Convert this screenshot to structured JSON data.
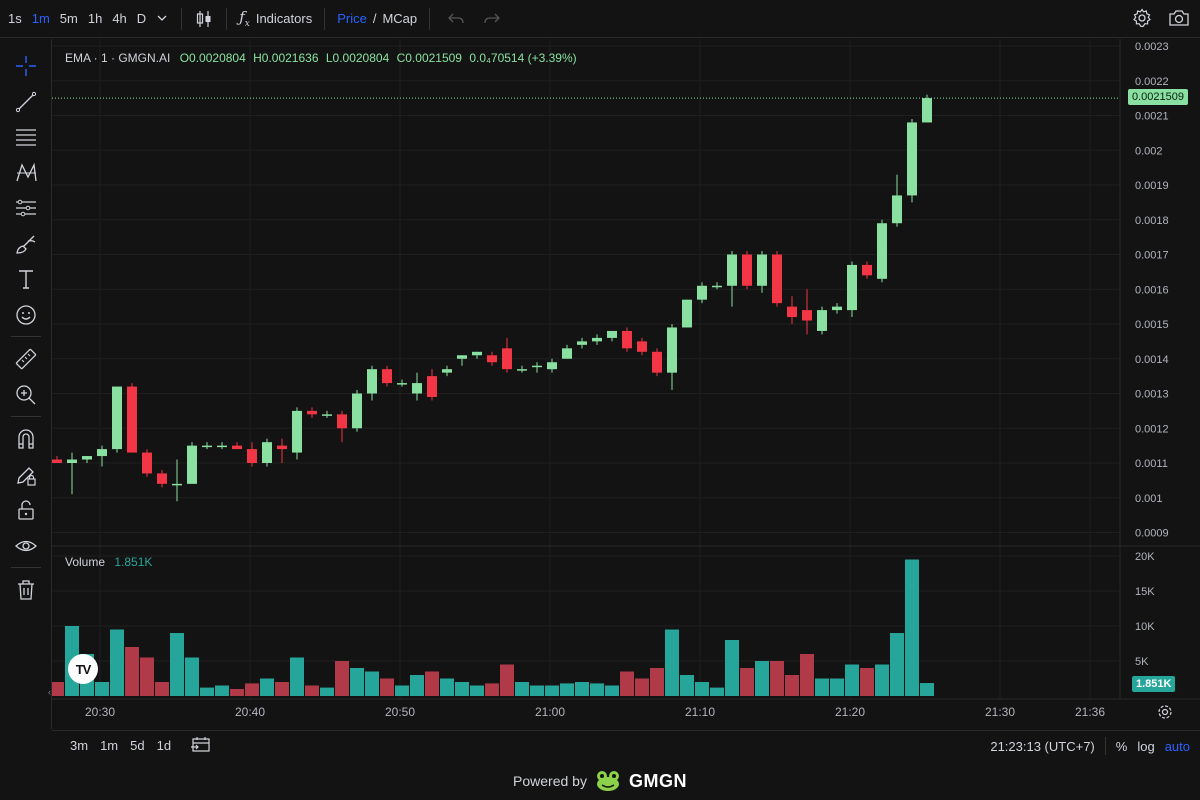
{
  "toolbar": {
    "timeframes": [
      "1s",
      "1m",
      "5m",
      "1h",
      "4h",
      "D"
    ],
    "active_timeframe": "1m",
    "indicators_label": "Indicators",
    "price_label": "Price",
    "slash": "/",
    "mcap_label": "MCap"
  },
  "legend": {
    "name": "EMA · 1 · GMGN.AI",
    "o": "O0.0020804",
    "h": "H0.0021636",
    "l": "L0.0020804",
    "c": "C0.0021509",
    "change": "0.0₄70514 (+3.39%)"
  },
  "volume_legend": {
    "label": "Volume",
    "value": "1.851K"
  },
  "price_tag": "0.0021509",
  "volume_tag": "1.851K",
  "bottom": {
    "ranges": [
      "3m",
      "1m",
      "5d",
      "1d"
    ],
    "time": "21:23:13 (UTC+7)",
    "percent": "%",
    "log": "log",
    "auto": "auto"
  },
  "footer": {
    "powered": "Powered by",
    "brand": "GMGN"
  },
  "colors": {
    "up": "#89e0a0",
    "down": "#f23645",
    "vol_up": "#26a69a",
    "vol_down": "#b03a48",
    "accent": "#2962ff"
  },
  "chart_data": {
    "type": "candlestick",
    "price_axis_labels": [
      "0.0023",
      "0.0022",
      "0.0021",
      "0.002",
      "0.0019",
      "0.0018",
      "0.0017",
      "0.0016",
      "0.0015",
      "0.0014",
      "0.0013",
      "0.0012",
      "0.0011",
      "0.001",
      "0.0009"
    ],
    "volume_axis_labels": [
      "20K",
      "15K",
      "10K",
      "5K"
    ],
    "time_labels": [
      "20:30",
      "20:40",
      "20:50",
      "21:00",
      "21:10",
      "21:20",
      "21:30",
      "21:36"
    ],
    "candles": [
      {
        "o": 0.00111,
        "h": 0.00112,
        "l": 0.0011,
        "c": 0.0011,
        "v": 2000
      },
      {
        "o": 0.0011,
        "h": 0.00113,
        "l": 0.00101,
        "c": 0.00111,
        "v": 10000
      },
      {
        "o": 0.00111,
        "h": 0.00112,
        "l": 0.0011,
        "c": 0.00112,
        "v": 6000
      },
      {
        "o": 0.00112,
        "h": 0.00115,
        "l": 0.00109,
        "c": 0.00114,
        "v": 2000
      },
      {
        "o": 0.00114,
        "h": 0.00131,
        "l": 0.00113,
        "c": 0.00132,
        "v": 9500
      },
      {
        "o": 0.00132,
        "h": 0.00133,
        "l": 0.00114,
        "c": 0.00113,
        "v": 7000
      },
      {
        "o": 0.00113,
        "h": 0.00114,
        "l": 0.00106,
        "c": 0.00107,
        "v": 5500
      },
      {
        "o": 0.00107,
        "h": 0.00108,
        "l": 0.00103,
        "c": 0.00104,
        "v": 2000
      },
      {
        "o": 0.00104,
        "h": 0.00111,
        "l": 0.00099,
        "c": 0.00104,
        "v": 9000
      },
      {
        "o": 0.00104,
        "h": 0.00116,
        "l": 0.00104,
        "c": 0.00115,
        "v": 5500
      },
      {
        "o": 0.00115,
        "h": 0.00116,
        "l": 0.00114,
        "c": 0.00115,
        "v": 1200
      },
      {
        "o": 0.00115,
        "h": 0.00116,
        "l": 0.00114,
        "c": 0.00115,
        "v": 1500
      },
      {
        "o": 0.00115,
        "h": 0.00116,
        "l": 0.00114,
        "c": 0.00114,
        "v": 1000
      },
      {
        "o": 0.00114,
        "h": 0.00116,
        "l": 0.00109,
        "c": 0.0011,
        "v": 1800
      },
      {
        "o": 0.0011,
        "h": 0.00117,
        "l": 0.00109,
        "c": 0.00116,
        "v": 2500
      },
      {
        "o": 0.00115,
        "h": 0.00117,
        "l": 0.0011,
        "c": 0.00114,
        "v": 2000
      },
      {
        "o": 0.00113,
        "h": 0.00126,
        "l": 0.00111,
        "c": 0.00125,
        "v": 5500
      },
      {
        "o": 0.00125,
        "h": 0.00126,
        "l": 0.00123,
        "c": 0.00124,
        "v": 1500
      },
      {
        "o": 0.00124,
        "h": 0.00125,
        "l": 0.00123,
        "c": 0.00124,
        "v": 1200
      },
      {
        "o": 0.00124,
        "h": 0.00125,
        "l": 0.00116,
        "c": 0.0012,
        "v": 5000
      },
      {
        "o": 0.0012,
        "h": 0.00131,
        "l": 0.00119,
        "c": 0.0013,
        "v": 4000
      },
      {
        "o": 0.0013,
        "h": 0.00138,
        "l": 0.00128,
        "c": 0.00137,
        "v": 3500
      },
      {
        "o": 0.00137,
        "h": 0.00138,
        "l": 0.00132,
        "c": 0.00133,
        "v": 2500
      },
      {
        "o": 0.00133,
        "h": 0.00134,
        "l": 0.00132,
        "c": 0.00133,
        "v": 1500
      },
      {
        "o": 0.0013,
        "h": 0.00136,
        "l": 0.00128,
        "c": 0.00133,
        "v": 3000
      },
      {
        "o": 0.00135,
        "h": 0.00137,
        "l": 0.00128,
        "c": 0.00129,
        "v": 3500
      },
      {
        "o": 0.00136,
        "h": 0.00138,
        "l": 0.00135,
        "c": 0.00137,
        "v": 2500
      },
      {
        "o": 0.0014,
        "h": 0.00141,
        "l": 0.00138,
        "c": 0.00141,
        "v": 2000
      },
      {
        "o": 0.00141,
        "h": 0.00142,
        "l": 0.0014,
        "c": 0.00142,
        "v": 1500
      },
      {
        "o": 0.00141,
        "h": 0.00142,
        "l": 0.00138,
        "c": 0.00139,
        "v": 1800
      },
      {
        "o": 0.00143,
        "h": 0.00146,
        "l": 0.00136,
        "c": 0.00137,
        "v": 4500
      },
      {
        "o": 0.00137,
        "h": 0.00138,
        "l": 0.00136,
        "c": 0.00137,
        "v": 2000
      },
      {
        "o": 0.00138,
        "h": 0.00139,
        "l": 0.00136,
        "c": 0.00138,
        "v": 1500
      },
      {
        "o": 0.00137,
        "h": 0.0014,
        "l": 0.00136,
        "c": 0.00139,
        "v": 1500
      },
      {
        "o": 0.0014,
        "h": 0.00144,
        "l": 0.0014,
        "c": 0.00143,
        "v": 1800
      },
      {
        "o": 0.00144,
        "h": 0.00146,
        "l": 0.00143,
        "c": 0.00145,
        "v": 2000
      },
      {
        "o": 0.00145,
        "h": 0.00147,
        "l": 0.00144,
        "c": 0.00146,
        "v": 1800
      },
      {
        "o": 0.00146,
        "h": 0.00148,
        "l": 0.00145,
        "c": 0.00148,
        "v": 1500
      },
      {
        "o": 0.00148,
        "h": 0.00149,
        "l": 0.00142,
        "c": 0.00143,
        "v": 3500
      },
      {
        "o": 0.00145,
        "h": 0.00146,
        "l": 0.00141,
        "c": 0.00142,
        "v": 2500
      },
      {
        "o": 0.00142,
        "h": 0.00143,
        "l": 0.00135,
        "c": 0.00136,
        "v": 4000
      },
      {
        "o": 0.00136,
        "h": 0.0015,
        "l": 0.00131,
        "c": 0.00149,
        "v": 9500
      },
      {
        "o": 0.00149,
        "h": 0.00157,
        "l": 0.00149,
        "c": 0.00157,
        "v": 3000
      },
      {
        "o": 0.00157,
        "h": 0.00162,
        "l": 0.00156,
        "c": 0.00161,
        "v": 2000
      },
      {
        "o": 0.00161,
        "h": 0.00162,
        "l": 0.0016,
        "c": 0.00161,
        "v": 1200
      },
      {
        "o": 0.00161,
        "h": 0.00171,
        "l": 0.00155,
        "c": 0.0017,
        "v": 8000
      },
      {
        "o": 0.0017,
        "h": 0.00171,
        "l": 0.0016,
        "c": 0.00161,
        "v": 4000
      },
      {
        "o": 0.00161,
        "h": 0.00171,
        "l": 0.00159,
        "c": 0.0017,
        "v": 5000
      },
      {
        "o": 0.0017,
        "h": 0.00171,
        "l": 0.00155,
        "c": 0.00156,
        "v": 5000
      },
      {
        "o": 0.00155,
        "h": 0.00158,
        "l": 0.0015,
        "c": 0.00152,
        "v": 3000
      },
      {
        "o": 0.00154,
        "h": 0.0016,
        "l": 0.00147,
        "c": 0.00151,
        "v": 6000
      },
      {
        "o": 0.00148,
        "h": 0.00155,
        "l": 0.00147,
        "c": 0.00154,
        "v": 2500
      },
      {
        "o": 0.00154,
        "h": 0.00156,
        "l": 0.00153,
        "c": 0.00155,
        "v": 2500
      },
      {
        "o": 0.00154,
        "h": 0.00168,
        "l": 0.00152,
        "c": 0.00167,
        "v": 4500
      },
      {
        "o": 0.00167,
        "h": 0.00168,
        "l": 0.00163,
        "c": 0.00164,
        "v": 4000
      },
      {
        "o": 0.00163,
        "h": 0.0018,
        "l": 0.00162,
        "c": 0.00179,
        "v": 4500
      },
      {
        "o": 0.00179,
        "h": 0.00193,
        "l": 0.00178,
        "c": 0.00187,
        "v": 9000
      },
      {
        "o": 0.00187,
        "h": 0.00209,
        "l": 0.00185,
        "c": 0.00208,
        "v": 19500
      },
      {
        "o": 0.00208,
        "h": 0.00216,
        "l": 0.00208,
        "c": 0.00215,
        "v": 1851
      }
    ]
  }
}
